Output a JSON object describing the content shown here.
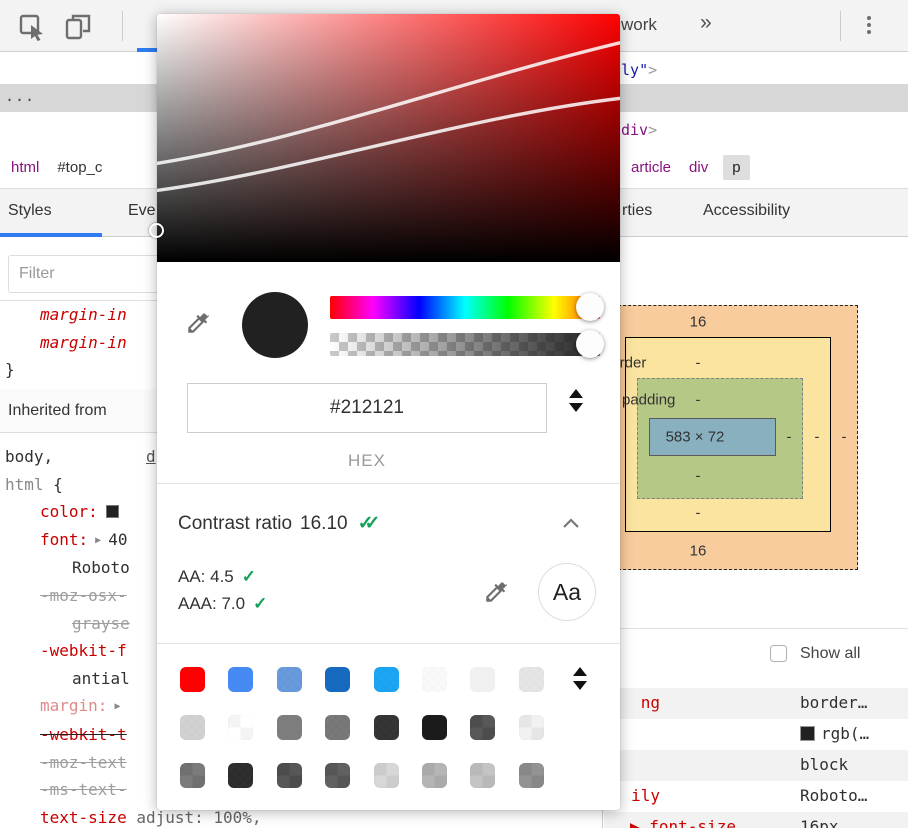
{
  "toolbar": {
    "network_tab_partial": "work",
    "more_tabs_glyph": "»"
  },
  "dom_tree": {
    "line1": [
      {
        "t": "ly",
        "c": "t-attr"
      },
      {
        "t": "\"",
        "c": "t-attr"
      },
      {
        "t": ">",
        "c": "t-gray"
      }
    ],
    "ellipsis": "...",
    "line2": [
      {
        "t": "div",
        "c": "t-tag"
      },
      {
        "t": ">",
        "c": "t-gray"
      }
    ]
  },
  "breadcrumb": {
    "left": [
      {
        "label": "html",
        "type": "tag"
      },
      {
        "label": "#top_c",
        "type": "id"
      }
    ],
    "right": [
      {
        "label": "article",
        "type": "tag"
      },
      {
        "label": "div",
        "type": "tag"
      },
      {
        "label": "p",
        "type": "selected"
      }
    ]
  },
  "sidebar_tabs": {
    "styles": "Styles",
    "event_listeners_partial": "Eve",
    "properties_partial": "rties",
    "accessibility": "Accessibility"
  },
  "styles_pane": {
    "filter_placeholder": "Filter",
    "pre_lines": [
      {
        "ind": 1,
        "seg": [
          {
            "t": "margin-in",
            "c": "prop italic"
          }
        ]
      },
      {
        "ind": 1,
        "seg": [
          {
            "t": "margin-in",
            "c": "prop italic"
          }
        ]
      },
      {
        "ind": 0,
        "seg": [
          {
            "t": "}",
            "c": "plain"
          }
        ]
      }
    ],
    "inherited_header": "Inherited from",
    "rule_lines": [
      {
        "ind": 0,
        "seg": [
          {
            "t": "body,",
            "c": "plain"
          }
        ],
        "link": "d"
      },
      {
        "ind": 0,
        "seg": [
          {
            "t": "html",
            "c": "gray"
          },
          {
            "t": " {",
            "c": "plain"
          }
        ]
      },
      {
        "ind": 1,
        "seg": [
          {
            "t": "color:",
            "c": "prop"
          },
          {
            "sw": "#212121"
          }
        ]
      },
      {
        "ind": 1,
        "seg": [
          {
            "t": "font:",
            "c": "prop"
          },
          {
            "t": "▶",
            "c": "exp-arrow"
          },
          {
            "t": "40",
            "c": "plain"
          }
        ]
      },
      {
        "ind": 2,
        "seg": [
          {
            "t": "Roboto",
            "c": "plain"
          }
        ]
      },
      {
        "ind": 1,
        "seg": [
          {
            "t": "-moz-osx-",
            "c": "gstrike"
          }
        ]
      },
      {
        "ind": 2,
        "seg": [
          {
            "t": "grayse",
            "c": "gstrike"
          }
        ]
      },
      {
        "ind": 1,
        "seg": [
          {
            "t": "-webkit-f",
            "c": "prop"
          }
        ]
      },
      {
        "ind": 2,
        "seg": [
          {
            "t": "antial",
            "c": "plain"
          }
        ]
      },
      {
        "ind": 1,
        "seg": [
          {
            "t": "margin:",
            "c": "propfade"
          },
          {
            "t": "▶",
            "c": "exp-arrow"
          }
        ]
      },
      {
        "ind": 1,
        "seg": [
          {
            "t": "-webkit-t",
            "c": "prop dstrike"
          }
        ]
      },
      {
        "ind": 1,
        "seg": [
          {
            "t": "-moz-text",
            "c": "gstrike"
          }
        ]
      },
      {
        "ind": 1,
        "seg": [
          {
            "t": "-ms-text-",
            "c": "gstrike"
          }
        ]
      },
      {
        "ind": 1,
        "seg": [
          {
            "t": "text-size",
            "c": "prop"
          },
          {
            "t": " adjust: 100%,",
            "c": "dim"
          }
        ]
      }
    ]
  },
  "computed_pane": {
    "box_model": {
      "margin_top": "16",
      "margin_bottom": "16",
      "border_label": "border",
      "padding_label": "padding",
      "content_size": "583 × 72",
      "dash": "-"
    },
    "show_all_label": "Show all",
    "rows": [
      {
        "tail": "ng",
        "value": "border…",
        "shade": true
      },
      {
        "swatch": "#212121",
        "value": "rgb(…",
        "shade": false
      },
      {
        "value": "block",
        "shade": true
      },
      {
        "tail": "ily",
        "value": "Roboto…",
        "shade": false
      },
      {
        "name": "font-size",
        "arrow": "▶",
        "value": "16px",
        "shade": true
      }
    ]
  },
  "color_picker": {
    "current_color": "#212121",
    "hex_value": "#212121",
    "format_label": "HEX",
    "contrast": {
      "title": "Contrast ratio",
      "value": "16.10",
      "pass_icon": "✓✓",
      "aa_line": "AA: 4.5",
      "aaa_line": "AAA: 7.0",
      "check": "✓",
      "pass_color": "#15a05a"
    },
    "preview_text": "Aa",
    "palette_rows": [
      [
        {
          "c": "#ff0000"
        },
        {
          "c": "#4589f2"
        },
        {
          "c": "#5c92d9",
          "a": "fine"
        },
        {
          "c": "#1569bf"
        },
        {
          "c": "#0b9ff2",
          "a": "fine"
        },
        {
          "c": "#fafafa",
          "a": "fine"
        },
        {
          "c": "#f0f0f0"
        },
        {
          "c": "#e3e3e3",
          "a": "fine"
        }
      ],
      [
        {
          "c": "#cfcfcf",
          "a": "fine"
        },
        {
          "c": "#ffffff",
          "a": "quad"
        },
        {
          "c": "#7d7d7d"
        },
        {
          "c": "#6f6f6f",
          "a": "fine"
        },
        {
          "c": "#272727",
          "a": "fine"
        },
        {
          "c": "#1b1b1b"
        },
        {
          "c": "#2e2e2e",
          "a": "quad"
        },
        {
          "c": "#ededed",
          "a": "quad"
        }
      ],
      [
        {
          "c": "#5a5a5a",
          "a": "quad"
        },
        {
          "c": "#1f1f1f",
          "a": "fine"
        },
        {
          "c": "#2d2d2d",
          "a": "quad"
        },
        {
          "c": "#3a3a3a",
          "a": "quad"
        },
        {
          "c": "#cdcdcd",
          "a": "quad"
        },
        {
          "c": "#a3a3a3",
          "a": "quad"
        },
        {
          "c": "#b5b5b5",
          "a": "quad"
        },
        {
          "c": "#787878",
          "a": "quad"
        }
      ]
    ]
  }
}
